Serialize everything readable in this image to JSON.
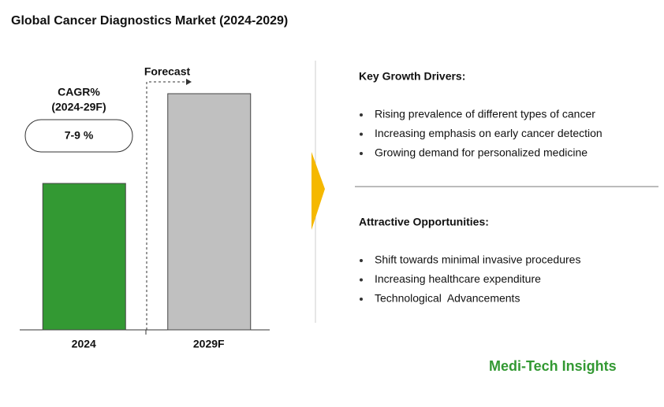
{
  "chart_data": {
    "type": "bar",
    "title": "Global Cancer Diagnostics Market (2024-2029)",
    "categories": [
      "2024",
      "2029F"
    ],
    "values": [
      62,
      100
    ],
    "colors": [
      "#339933",
      "#c0c0c0"
    ],
    "ylim": [
      0,
      100
    ],
    "annotations": {
      "cagr_label": "CAGR%",
      "cagr_period": "(2024-29F)",
      "cagr_value": "7-9 %",
      "forecast": "Forecast"
    }
  },
  "panels": [
    {
      "title": "Key Growth Drivers:",
      "items": [
        "Rising prevalence of different types of cancer",
        "Increasing emphasis on early cancer detection",
        "Growing demand for personalized medicine"
      ]
    },
    {
      "title": "Attractive Opportunities:",
      "items": [
        "Shift towards minimal invasive procedures",
        "Increasing healthcare expenditure",
        "Technological  Advancements"
      ]
    }
  ],
  "brand": "Medi-Tech Insights"
}
